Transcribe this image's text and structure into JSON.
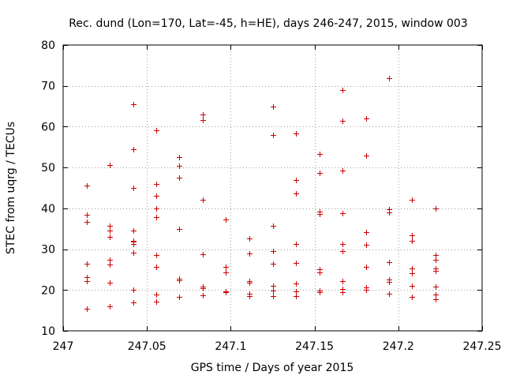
{
  "chart_data": {
    "type": "scatter",
    "title": "Rec. dund (Lon=170, Lat=-45, h=HE), days 246-247, 2015, window 003",
    "xlabel": "GPS time / Days of year 2015",
    "ylabel": "STEC from uqrg / TECUs",
    "xlim": [
      247,
      247.25
    ],
    "ylim": [
      10,
      80
    ],
    "xticks": [
      247,
      247.05,
      247.1,
      247.15,
      247.2,
      247.25
    ],
    "xtick_labels": [
      "247",
      "247.05",
      "247.1",
      "247.15",
      "247.2",
      "247.25"
    ],
    "yticks": [
      10,
      20,
      30,
      40,
      50,
      60,
      70,
      80
    ],
    "ytick_labels": [
      "10",
      "20",
      "30",
      "40",
      "50",
      "60",
      "70",
      "80"
    ],
    "grid": true,
    "marker": "+",
    "color": "#cc0000",
    "series": [
      {
        "name": "STEC",
        "points": [
          [
            247.0139,
            45.5
          ],
          [
            247.0139,
            38.5
          ],
          [
            247.0139,
            36.7
          ],
          [
            247.0139,
            26.4
          ],
          [
            247.0139,
            23.2
          ],
          [
            247.0139,
            22.1
          ],
          [
            247.0139,
            15.4
          ],
          [
            247.0278,
            50.7
          ],
          [
            247.0278,
            35.7
          ],
          [
            247.0278,
            34.6
          ],
          [
            247.0278,
            33.0
          ],
          [
            247.0278,
            27.4
          ],
          [
            247.0278,
            26.3
          ],
          [
            247.0278,
            21.8
          ],
          [
            247.0278,
            16.0
          ],
          [
            247.0417,
            65.5
          ],
          [
            247.0417,
            54.4
          ],
          [
            247.0417,
            45.0
          ],
          [
            247.0417,
            34.6
          ],
          [
            247.0417,
            32.0
          ],
          [
            247.0417,
            31.8
          ],
          [
            247.0417,
            31.2
          ],
          [
            247.0417,
            29.2
          ],
          [
            247.0417,
            20.0
          ],
          [
            247.0417,
            17.0
          ],
          [
            247.0556,
            59.1
          ],
          [
            247.0556,
            46.0
          ],
          [
            247.0556,
            43.1
          ],
          [
            247.0556,
            40.0
          ],
          [
            247.0556,
            37.9
          ],
          [
            247.0556,
            28.6
          ],
          [
            247.0556,
            25.6
          ],
          [
            247.0556,
            18.8
          ],
          [
            247.0556,
            17.2
          ],
          [
            247.0694,
            52.5
          ],
          [
            247.0694,
            50.4
          ],
          [
            247.0694,
            47.5
          ],
          [
            247.0694,
            35.0
          ],
          [
            247.0694,
            22.8
          ],
          [
            247.0694,
            22.4
          ],
          [
            247.0694,
            18.3
          ],
          [
            247.0833,
            62.9
          ],
          [
            247.0833,
            61.7
          ],
          [
            247.0833,
            42.1
          ],
          [
            247.0833,
            28.8
          ],
          [
            247.0833,
            20.8
          ],
          [
            247.0833,
            20.5
          ],
          [
            247.0833,
            18.7
          ],
          [
            247.0972,
            37.3
          ],
          [
            247.0972,
            25.7
          ],
          [
            247.0972,
            24.4
          ],
          [
            247.0972,
            19.7
          ],
          [
            247.0972,
            19.5
          ],
          [
            247.1111,
            32.7
          ],
          [
            247.1111,
            29.0
          ],
          [
            247.1111,
            22.2
          ],
          [
            247.1111,
            21.7
          ],
          [
            247.1111,
            19.0
          ],
          [
            247.1111,
            18.5
          ],
          [
            247.125,
            65.0
          ],
          [
            247.125,
            58.0
          ],
          [
            247.125,
            35.8
          ],
          [
            247.125,
            29.5
          ],
          [
            247.125,
            26.4
          ],
          [
            247.125,
            21.0
          ],
          [
            247.125,
            19.9
          ],
          [
            247.125,
            18.5
          ],
          [
            247.1389,
            58.3
          ],
          [
            247.1389,
            47.0
          ],
          [
            247.1389,
            43.7
          ],
          [
            247.1389,
            31.2
          ],
          [
            247.1389,
            26.6
          ],
          [
            247.1389,
            21.6
          ],
          [
            247.1389,
            19.7
          ],
          [
            247.1389,
            18.5
          ],
          [
            247.1528,
            53.3
          ],
          [
            247.1528,
            48.6
          ],
          [
            247.1528,
            39.2
          ],
          [
            247.1528,
            38.7
          ],
          [
            247.1528,
            25.0
          ],
          [
            247.1528,
            24.3
          ],
          [
            247.1528,
            19.9
          ],
          [
            247.1528,
            19.4
          ],
          [
            247.1667,
            69.0
          ],
          [
            247.1667,
            61.5
          ],
          [
            247.1667,
            49.3
          ],
          [
            247.1667,
            38.9
          ],
          [
            247.1667,
            31.3
          ],
          [
            247.1667,
            29.6
          ],
          [
            247.1667,
            22.2
          ],
          [
            247.1667,
            20.2
          ],
          [
            247.1667,
            19.5
          ],
          [
            247.1806,
            62.0
          ],
          [
            247.1806,
            53.0
          ],
          [
            247.1806,
            34.2
          ],
          [
            247.1806,
            31.1
          ],
          [
            247.1806,
            25.6
          ],
          [
            247.1806,
            20.6
          ],
          [
            247.1806,
            20.0
          ],
          [
            247.1944,
            71.9
          ],
          [
            247.1944,
            39.8
          ],
          [
            247.1944,
            39.0
          ],
          [
            247.1944,
            26.9
          ],
          [
            247.1944,
            22.6
          ],
          [
            247.1944,
            22.0
          ],
          [
            247.1944,
            19.0
          ],
          [
            247.2083,
            42.1
          ],
          [
            247.2083,
            33.4
          ],
          [
            247.2083,
            32.0
          ],
          [
            247.2083,
            25.2
          ],
          [
            247.2083,
            24.2
          ],
          [
            247.2083,
            21.0
          ],
          [
            247.2083,
            18.3
          ],
          [
            247.2222,
            40.0
          ],
          [
            247.2222,
            28.5
          ],
          [
            247.2222,
            27.5
          ],
          [
            247.2222,
            25.3
          ],
          [
            247.2222,
            24.7
          ],
          [
            247.2222,
            20.8
          ],
          [
            247.2222,
            18.8
          ],
          [
            247.2222,
            17.8
          ]
        ]
      }
    ]
  }
}
